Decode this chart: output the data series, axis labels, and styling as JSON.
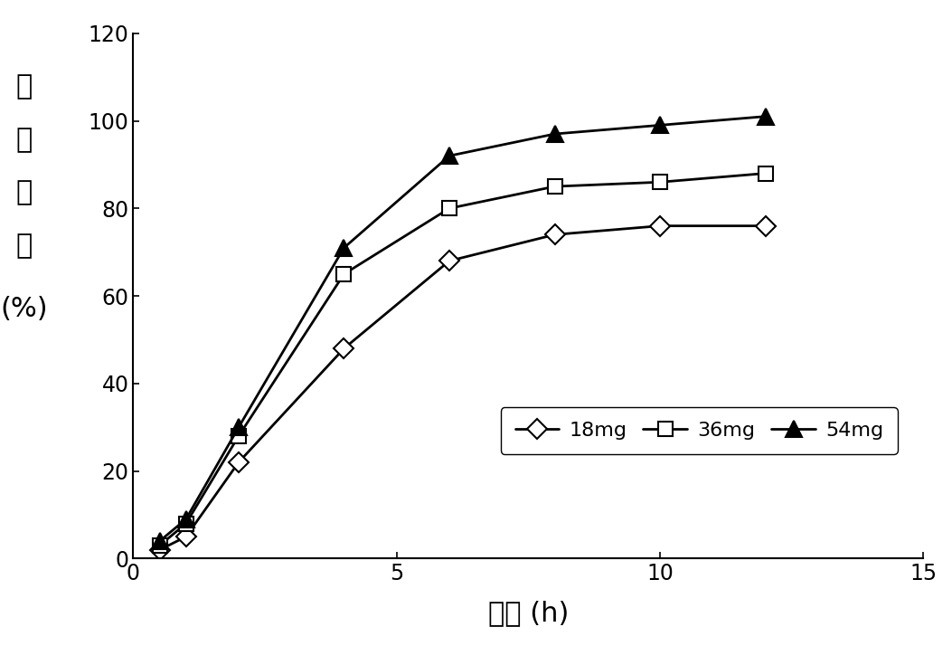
{
  "series": [
    {
      "label": "18mg",
      "marker": "D",
      "x": [
        0.5,
        1,
        2,
        4,
        6,
        8,
        10,
        12
      ],
      "y": [
        2,
        5,
        22,
        48,
        68,
        74,
        76,
        76
      ]
    },
    {
      "label": "36mg",
      "marker": "s",
      "x": [
        0.5,
        1,
        2,
        4,
        6,
        8,
        10,
        12
      ],
      "y": [
        3,
        8,
        28,
        65,
        80,
        85,
        86,
        88
      ]
    },
    {
      "label": "54mg",
      "marker": "^",
      "x": [
        0.5,
        1,
        2,
        4,
        6,
        8,
        10,
        12
      ],
      "y": [
        4,
        9,
        30,
        71,
        92,
        97,
        99,
        101
      ]
    }
  ],
  "line_color": "#000000",
  "xlabel": "时间 (h)",
  "ylabel_chars": [
    "累",
    "积",
    "释",
    "放",
    "(%)"
  ],
  "xlim": [
    0,
    15
  ],
  "ylim": [
    0,
    120
  ],
  "xticks": [
    0,
    5,
    10,
    15
  ],
  "yticks": [
    0,
    20,
    40,
    60,
    80,
    100,
    120
  ],
  "background_color": "#ffffff",
  "xlabel_fontsize": 22,
  "ylabel_fontsize": 22,
  "tick_fontsize": 17,
  "legend_fontsize": 16,
  "marker_sizes": {
    "18mg": 11,
    "36mg": 11,
    "54mg": 13
  },
  "marker_face": {
    "18mg": "white",
    "36mg": "white",
    "54mg": "black"
  },
  "linewidth": 2.0
}
